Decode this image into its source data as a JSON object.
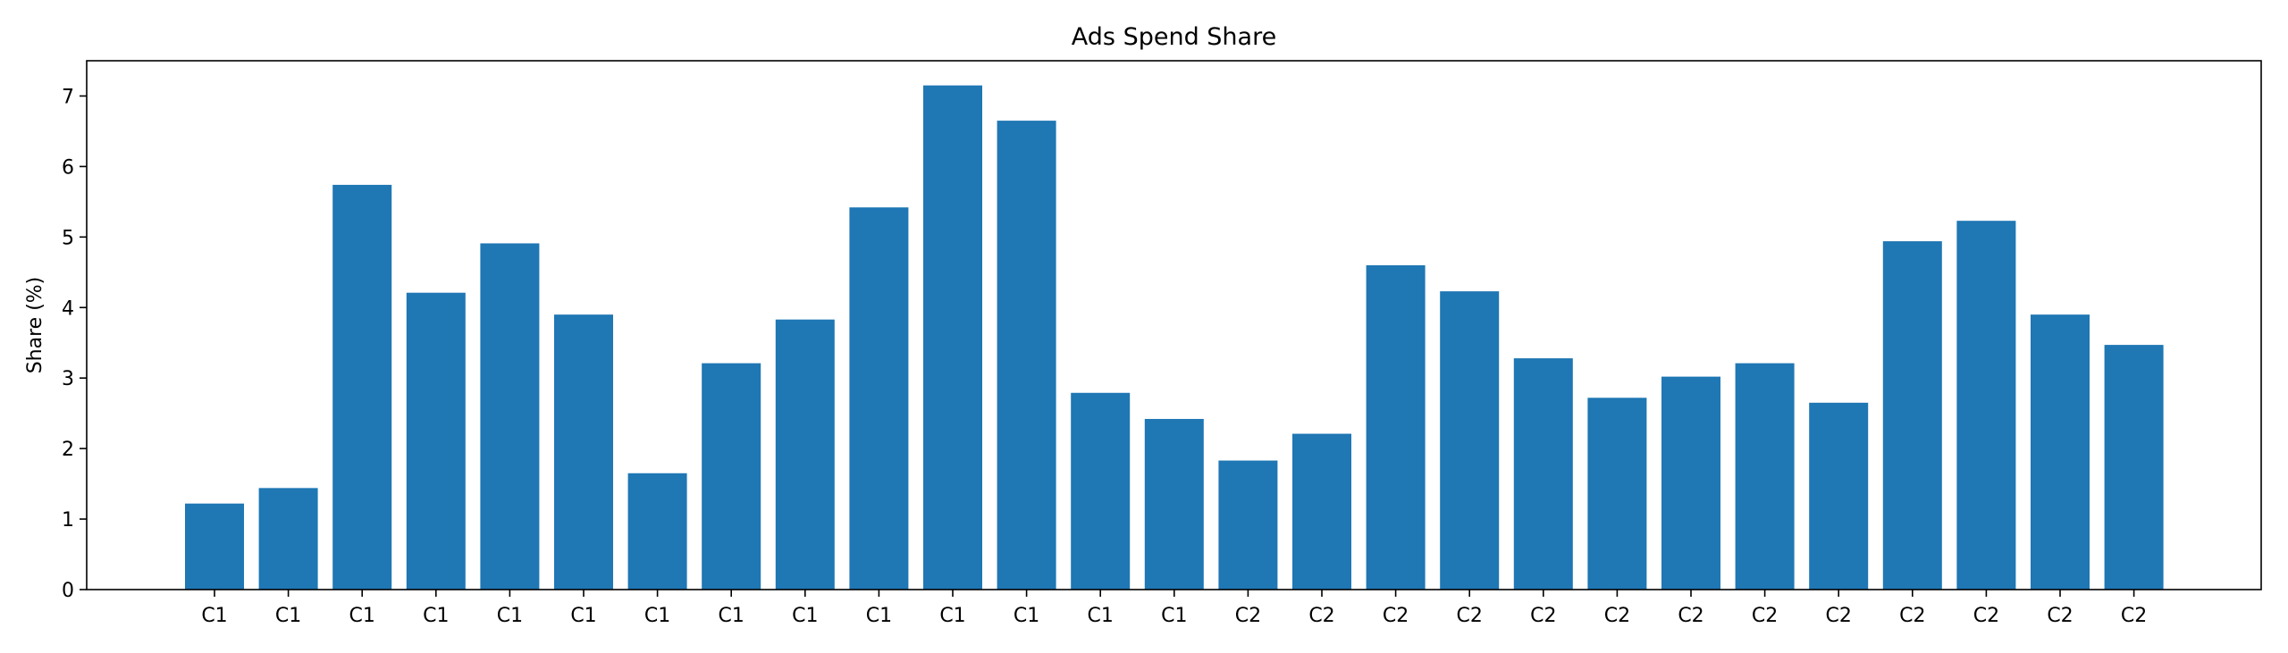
{
  "chart_data": {
    "type": "bar",
    "title": "Ads Spend Share",
    "xlabel": "",
    "ylabel": "Share (%)",
    "ylim": [
      0,
      7.5
    ],
    "yticks": [
      0,
      1,
      2,
      3,
      4,
      5,
      6,
      7
    ],
    "grid": false,
    "bar_color": "#1f77b4",
    "categories": [
      "C1",
      "C1",
      "C1",
      "C1",
      "C1",
      "C1",
      "C1",
      "C1",
      "C1",
      "C1",
      "C1",
      "C1",
      "C1",
      "C1",
      "C2",
      "C2",
      "C2",
      "C2",
      "C2",
      "C2",
      "C2",
      "C2",
      "C2",
      "C2",
      "C2",
      "C2",
      "C2"
    ],
    "values": [
      1.22,
      1.44,
      5.74,
      4.21,
      4.91,
      3.9,
      1.65,
      3.21,
      3.83,
      5.42,
      7.15,
      6.65,
      2.79,
      2.42,
      1.83,
      2.21,
      4.6,
      4.23,
      3.28,
      2.72,
      3.02,
      3.21,
      2.65,
      4.94,
      5.23,
      3.9,
      3.47
    ]
  }
}
